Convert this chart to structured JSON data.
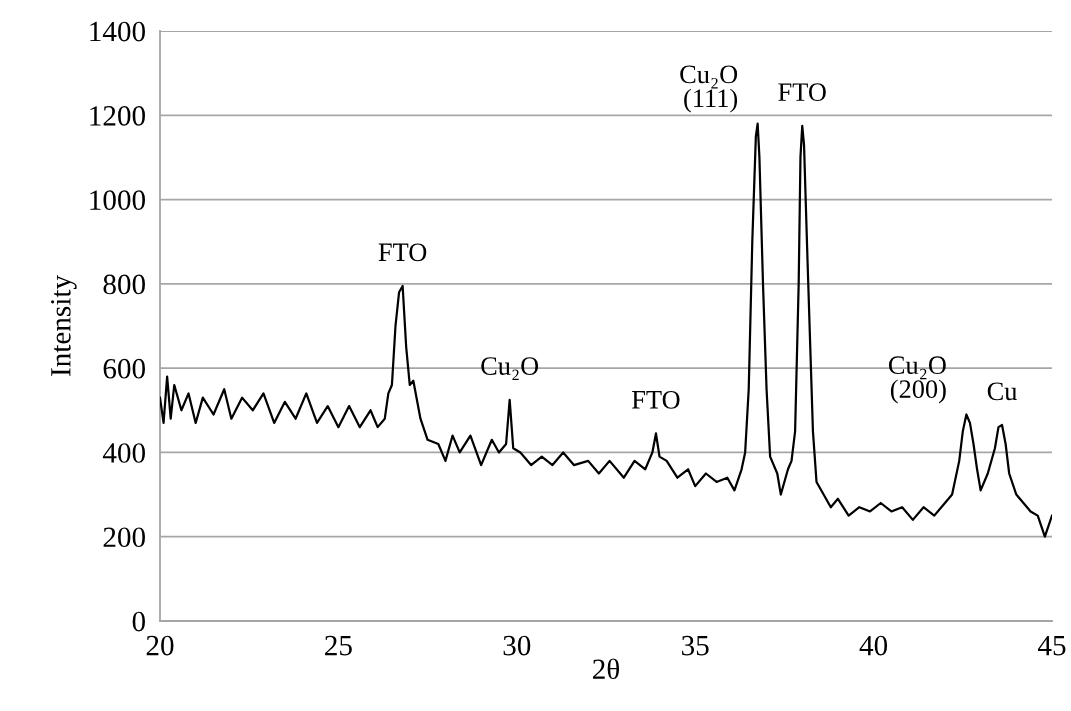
{
  "chart_data": {
    "type": "line",
    "xlabel": "2θ",
    "ylabel": "Intensity",
    "series": [
      {
        "color": "#000000",
        "x": [
          20.0,
          20.1,
          20.2,
          20.3,
          20.4,
          20.6,
          20.8,
          21.0,
          21.2,
          21.5,
          21.8,
          22.0,
          22.3,
          22.6,
          22.9,
          23.2,
          23.5,
          23.8,
          24.1,
          24.4,
          24.7,
          25.0,
          25.3,
          25.6,
          25.9,
          26.1,
          26.3,
          26.4,
          26.5,
          26.6,
          26.7,
          26.8,
          26.9,
          27.0,
          27.1,
          27.3,
          27.5,
          27.8,
          28.0,
          28.2,
          28.4,
          28.7,
          29.0,
          29.3,
          29.5,
          29.7,
          29.8,
          29.9,
          30.1,
          30.4,
          30.7,
          31.0,
          31.3,
          31.6,
          32.0,
          32.3,
          32.6,
          33.0,
          33.3,
          33.6,
          33.8,
          33.9,
          34.0,
          34.2,
          34.5,
          34.8,
          35.0,
          35.3,
          35.6,
          35.9,
          36.1,
          36.3,
          36.4,
          36.5,
          36.6,
          36.7,
          36.75,
          36.8,
          36.9,
          37.0,
          37.1,
          37.3,
          37.4,
          37.6,
          37.7,
          37.8,
          37.9,
          37.95,
          38.0,
          38.05,
          38.15,
          38.3,
          38.4,
          38.6,
          38.8,
          39.0,
          39.3,
          39.6,
          39.9,
          40.2,
          40.5,
          40.8,
          41.1,
          41.4,
          41.7,
          42.0,
          42.2,
          42.4,
          42.5,
          42.6,
          42.7,
          42.8,
          42.9,
          43.0,
          43.2,
          43.4,
          43.5,
          43.6,
          43.7,
          43.8,
          44.0,
          44.2,
          44.4,
          44.6,
          44.8,
          45.0
        ],
        "values": [
          530,
          470,
          580,
          480,
          560,
          500,
          540,
          470,
          530,
          490,
          550,
          480,
          530,
          500,
          540,
          470,
          520,
          480,
          540,
          470,
          510,
          460,
          510,
          460,
          500,
          460,
          480,
          540,
          560,
          700,
          780,
          795,
          650,
          560,
          570,
          480,
          430,
          420,
          380,
          440,
          400,
          440,
          370,
          430,
          400,
          420,
          525,
          410,
          400,
          370,
          390,
          370,
          400,
          370,
          380,
          350,
          380,
          340,
          380,
          360,
          400,
          445,
          390,
          380,
          340,
          360,
          320,
          350,
          330,
          340,
          310,
          360,
          400,
          550,
          900,
          1150,
          1180,
          1100,
          800,
          550,
          390,
          350,
          300,
          360,
          380,
          450,
          800,
          1100,
          1175,
          1130,
          850,
          450,
          330,
          300,
          270,
          290,
          250,
          270,
          260,
          280,
          260,
          270,
          240,
          270,
          250,
          280,
          300,
          380,
          450,
          490,
          470,
          420,
          360,
          310,
          350,
          410,
          460,
          465,
          420,
          350,
          300,
          280,
          260,
          250,
          200,
          250
        ]
      }
    ],
    "xlim": [
      20,
      45
    ],
    "xticks": [
      20,
      25,
      30,
      35,
      40,
      45
    ],
    "ylim": [
      0,
      1400
    ],
    "yticks": [
      0,
      200,
      400,
      600,
      800,
      1000,
      1200,
      1400
    ],
    "grid": "y",
    "legend": false,
    "marker": "none",
    "line_style": "solid",
    "annotations": [
      {
        "text": "FTO",
        "x": 26.8,
        "y": 795
      },
      {
        "text": "Cu₂O",
        "x": 29.8,
        "y": 525
      },
      {
        "text": "FTO",
        "x": 33.9,
        "y": 445
      },
      {
        "text": "Cu₂O\n(111)",
        "x": 36.75,
        "y": 1180
      },
      {
        "text": "FTO",
        "x": 38.0,
        "y": 1175
      },
      {
        "text": "Cu₂O\n(200)",
        "x": 42.6,
        "y": 490
      },
      {
        "text": "Cu",
        "x": 43.6,
        "y": 465
      }
    ]
  }
}
